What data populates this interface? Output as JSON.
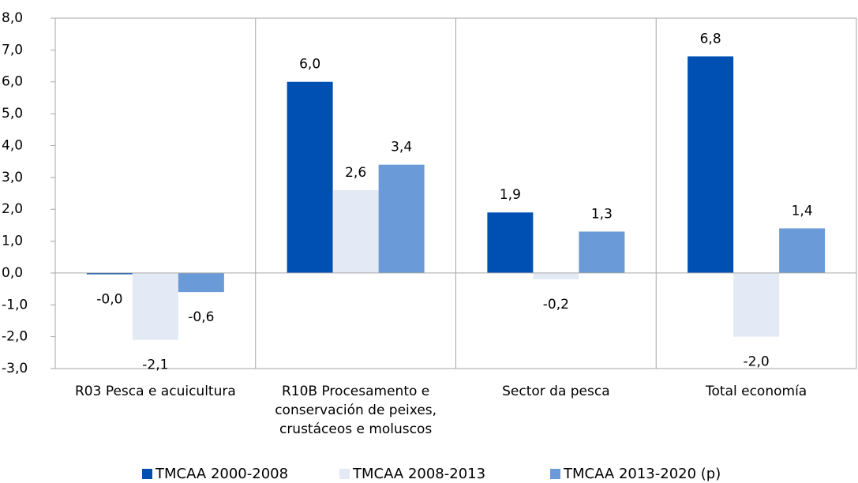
{
  "chart_data": {
    "type": "bar",
    "categories": [
      "R03 Pesca e acuicultura",
      "R10B Procesamento e conservación de peixes, crustáceos e moluscos",
      "Sector da pesca",
      "Total economía"
    ],
    "series": [
      {
        "name": "TMCAA 2000-2008",
        "color": "#0050b4",
        "values": [
          -0.04,
          6.0,
          1.9,
          6.8
        ],
        "value_labels": [
          "-0,0",
          "6,0",
          "1,9",
          "6,8"
        ]
      },
      {
        "name": "TMCAA 2008-2013",
        "color": "#e3eaf6",
        "values": [
          -2.1,
          2.6,
          -0.2,
          -2.0
        ],
        "value_labels": [
          "-2,1",
          "2,6",
          "-0,2",
          "-2,0"
        ]
      },
      {
        "name": "TMCAA 2013-2020 (p)",
        "color": "#6a9bd8",
        "values": [
          -0.6,
          3.4,
          1.3,
          1.4
        ],
        "value_labels": [
          "-0,6",
          "3,4",
          "1,3",
          "1,4"
        ]
      }
    ],
    "ylim": [
      -3,
      8
    ],
    "yticks": [
      {
        "value": -3,
        "label": "-3,0"
      },
      {
        "value": -2,
        "label": "-2,0"
      },
      {
        "value": -1,
        "label": "-1,0"
      },
      {
        "value": 0,
        "label": "0,0"
      },
      {
        "value": 1,
        "label": "1,0"
      },
      {
        "value": 2,
        "label": "2,0"
      },
      {
        "value": 3,
        "label": "3,0"
      },
      {
        "value": 4,
        "label": "4,0"
      },
      {
        "value": 5,
        "label": "5,0"
      },
      {
        "value": 6,
        "label": "6,0"
      },
      {
        "value": 7,
        "label": "7,0"
      },
      {
        "value": 8,
        "label": "8,0"
      }
    ],
    "legend": "bottom"
  }
}
